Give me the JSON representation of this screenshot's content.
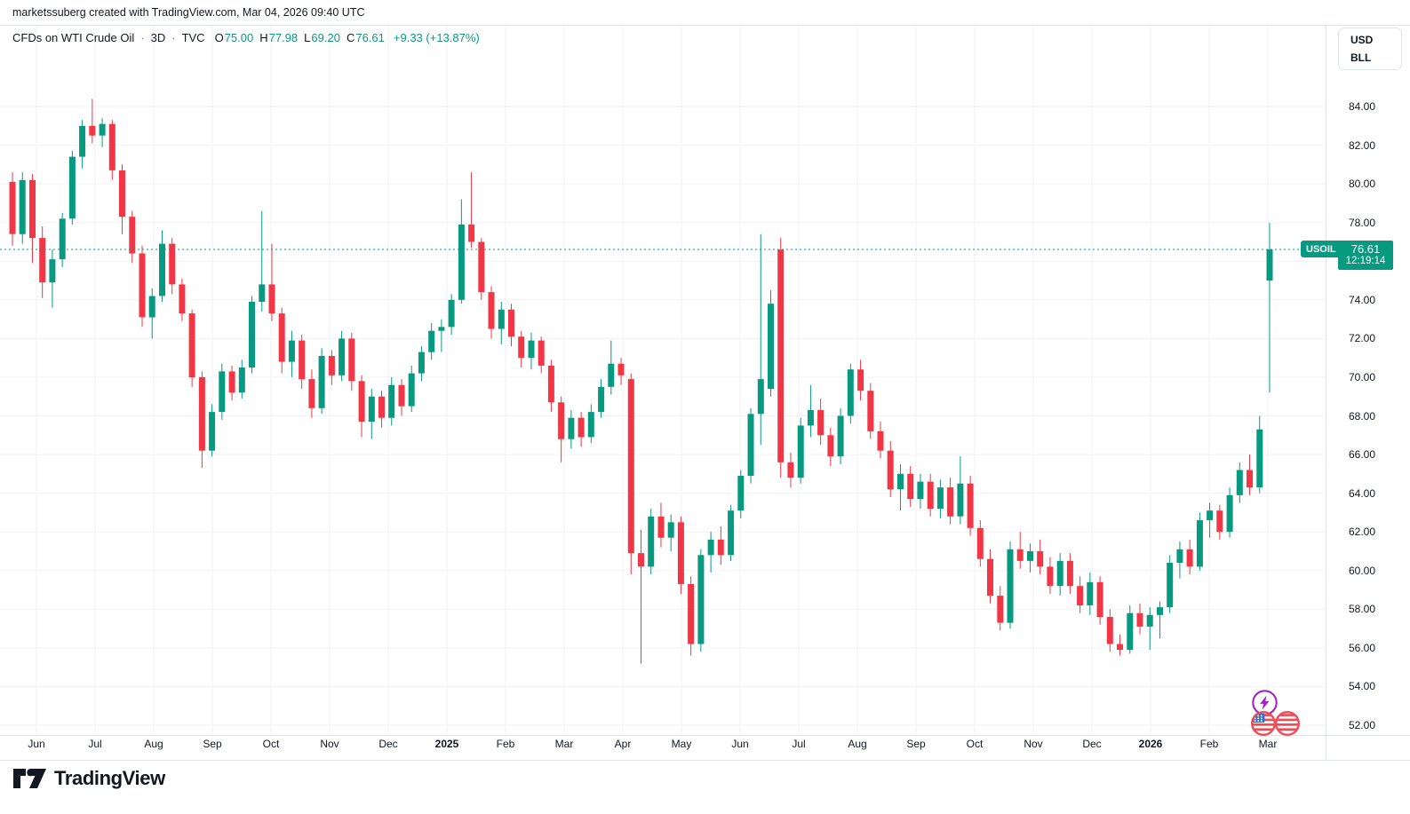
{
  "attribution": "marketssuberg created with TradingView.com, Mar 04, 2026 09:40 UTC",
  "legend": {
    "title": "CFDs on WTI Crude Oil",
    "separator": "·",
    "interval": "3D",
    "exchange": "TVC",
    "o_label": "O",
    "o_value": "75.00",
    "h_label": "H",
    "h_value": "77.98",
    "l_label": "L",
    "l_value": "69.20",
    "c_label": "C",
    "c_value": "76.61",
    "change": "+9.33 (+13.87%)"
  },
  "unit_box": {
    "currency": "USD",
    "unit": "BLL"
  },
  "price_label": {
    "symbol": "USOIL",
    "price": "76.61",
    "countdown": "12:19:14"
  },
  "footer": {
    "logo_text": "TradingView"
  },
  "icons": [
    "lightning-icon",
    "us-flag-icon",
    "tradingview-logo-mark"
  ],
  "colors": {
    "up": "#089981",
    "down": "#F23645",
    "accent": "#089981",
    "grid": "#f0f2f6",
    "border": "#e0e3eb",
    "text": "#131722",
    "muted": "#787b86",
    "purple": "#A224C4",
    "flag_red": "#EF4B55",
    "flag_blue": "#3A6CC6"
  },
  "chart_data": {
    "type": "candlestick",
    "title": "CFDs on WTI Crude Oil",
    "symbol": "USOIL",
    "exchange": "TVC",
    "interval": "3D",
    "last_bar": {
      "open": 75.0,
      "high": 77.98,
      "low": 69.2,
      "close": 76.61,
      "change": 9.33,
      "change_pct": 13.87
    },
    "price_line": {
      "value": 76.61,
      "style": "dotted"
    },
    "y_axis": {
      "min": 52,
      "max": 84,
      "tick_step": 2,
      "ticks": [
        84,
        82,
        80,
        78,
        76,
        74,
        72,
        70,
        68,
        66,
        64,
        62,
        60,
        58,
        56,
        54,
        52
      ]
    },
    "x_axis": {
      "labels": [
        {
          "label": "Jun",
          "bold": false
        },
        {
          "label": "Jul",
          "bold": false
        },
        {
          "label": "Aug",
          "bold": false
        },
        {
          "label": "Sep",
          "bold": false
        },
        {
          "label": "Oct",
          "bold": false
        },
        {
          "label": "Nov",
          "bold": false
        },
        {
          "label": "Dec",
          "bold": false
        },
        {
          "label": "2025",
          "bold": true
        },
        {
          "label": "Feb",
          "bold": false
        },
        {
          "label": "Mar",
          "bold": false
        },
        {
          "label": "Apr",
          "bold": false
        },
        {
          "label": "May",
          "bold": false
        },
        {
          "label": "Jun",
          "bold": false
        },
        {
          "label": "Jul",
          "bold": false
        },
        {
          "label": "Aug",
          "bold": false
        },
        {
          "label": "Sep",
          "bold": false
        },
        {
          "label": "Oct",
          "bold": false
        },
        {
          "label": "Nov",
          "bold": false
        },
        {
          "label": "Dec",
          "bold": false
        },
        {
          "label": "2026",
          "bold": true
        },
        {
          "label": "Feb",
          "bold": false
        },
        {
          "label": "Mar",
          "bold": false
        }
      ]
    },
    "candles_format": "[open, high, low, close] — values estimated from chart gridlines",
    "candles": [
      [
        80.1,
        80.6,
        76.8,
        77.4
      ],
      [
        77.4,
        80.6,
        76.9,
        80.2
      ],
      [
        80.2,
        80.5,
        75.9,
        77.2
      ],
      [
        77.2,
        77.8,
        74.1,
        74.9
      ],
      [
        74.9,
        76.6,
        73.6,
        76.1
      ],
      [
        76.1,
        78.5,
        75.7,
        78.2
      ],
      [
        78.2,
        81.7,
        77.9,
        81.4
      ],
      [
        81.4,
        83.3,
        80.8,
        83.0
      ],
      [
        83.0,
        84.4,
        82.1,
        82.5
      ],
      [
        82.5,
        83.4,
        81.9,
        83.1
      ],
      [
        83.1,
        83.3,
        80.2,
        80.7
      ],
      [
        80.7,
        81.0,
        77.4,
        78.3
      ],
      [
        78.3,
        78.6,
        75.9,
        76.4
      ],
      [
        76.4,
        76.8,
        72.6,
        73.1
      ],
      [
        73.1,
        74.6,
        72.0,
        74.2
      ],
      [
        74.2,
        77.6,
        73.9,
        76.9
      ],
      [
        76.9,
        77.2,
        74.3,
        74.8
      ],
      [
        74.8,
        75.1,
        72.9,
        73.3
      ],
      [
        73.3,
        73.5,
        69.5,
        70.0
      ],
      [
        70.0,
        70.3,
        65.3,
        66.2
      ],
      [
        66.2,
        68.6,
        65.9,
        68.2
      ],
      [
        68.2,
        70.7,
        67.8,
        70.3
      ],
      [
        70.3,
        70.6,
        68.8,
        69.2
      ],
      [
        69.2,
        70.9,
        68.9,
        70.5
      ],
      [
        70.5,
        74.2,
        70.2,
        73.9
      ],
      [
        73.9,
        78.6,
        73.4,
        74.8
      ],
      [
        74.8,
        76.9,
        72.9,
        73.3
      ],
      [
        73.3,
        73.6,
        70.2,
        70.8
      ],
      [
        70.8,
        72.4,
        70.0,
        71.9
      ],
      [
        71.9,
        72.2,
        69.4,
        69.9
      ],
      [
        69.9,
        70.4,
        67.9,
        68.4
      ],
      [
        68.4,
        71.5,
        68.1,
        71.1
      ],
      [
        71.1,
        71.4,
        69.6,
        70.1
      ],
      [
        70.1,
        72.4,
        69.8,
        72.0
      ],
      [
        72.0,
        72.3,
        69.3,
        69.8
      ],
      [
        69.8,
        70.1,
        66.9,
        67.7
      ],
      [
        67.7,
        69.4,
        66.8,
        69.0
      ],
      [
        69.0,
        69.3,
        67.4,
        67.9
      ],
      [
        67.9,
        70.0,
        67.5,
        69.6
      ],
      [
        69.6,
        69.9,
        68.0,
        68.5
      ],
      [
        68.5,
        70.6,
        68.2,
        70.2
      ],
      [
        70.2,
        71.6,
        69.8,
        71.3
      ],
      [
        71.3,
        72.8,
        70.9,
        72.4
      ],
      [
        72.4,
        73.0,
        71.3,
        72.6
      ],
      [
        72.6,
        74.3,
        72.2,
        74.0
      ],
      [
        74.0,
        79.2,
        73.8,
        77.9
      ],
      [
        77.9,
        80.6,
        76.7,
        77.0
      ],
      [
        77.0,
        77.2,
        74.0,
        74.4
      ],
      [
        74.4,
        74.7,
        72.0,
        72.5
      ],
      [
        72.5,
        73.9,
        71.7,
        73.5
      ],
      [
        73.5,
        73.8,
        71.6,
        72.1
      ],
      [
        72.1,
        72.4,
        70.5,
        71.0
      ],
      [
        71.0,
        72.3,
        70.4,
        71.9
      ],
      [
        71.9,
        72.1,
        70.2,
        70.6
      ],
      [
        70.6,
        70.9,
        68.2,
        68.7
      ],
      [
        68.7,
        69.0,
        65.6,
        66.8
      ],
      [
        66.8,
        68.3,
        66.3,
        67.9
      ],
      [
        67.9,
        68.2,
        66.4,
        66.9
      ],
      [
        66.9,
        68.6,
        66.6,
        68.2
      ],
      [
        68.2,
        69.9,
        67.9,
        69.5
      ],
      [
        69.5,
        71.9,
        69.1,
        70.7
      ],
      [
        70.7,
        71.0,
        69.6,
        70.1
      ],
      [
        69.9,
        70.2,
        59.8,
        60.9
      ],
      [
        60.9,
        62.1,
        55.2,
        60.2
      ],
      [
        60.2,
        63.2,
        59.8,
        62.8
      ],
      [
        62.8,
        63.5,
        61.2,
        61.7
      ],
      [
        61.7,
        62.9,
        61.0,
        62.5
      ],
      [
        62.5,
        62.8,
        58.8,
        59.3
      ],
      [
        59.3,
        59.7,
        55.6,
        56.2
      ],
      [
        56.2,
        61.1,
        55.8,
        60.8
      ],
      [
        60.8,
        62.0,
        59.9,
        61.6
      ],
      [
        61.6,
        62.3,
        60.3,
        60.8
      ],
      [
        60.8,
        63.4,
        60.5,
        63.1
      ],
      [
        63.1,
        65.2,
        62.7,
        64.9
      ],
      [
        64.9,
        68.4,
        64.5,
        68.1
      ],
      [
        68.1,
        77.4,
        66.5,
        69.9
      ],
      [
        69.4,
        74.5,
        69.0,
        73.8
      ],
      [
        76.6,
        77.2,
        64.8,
        65.6
      ],
      [
        65.6,
        66.1,
        64.3,
        64.8
      ],
      [
        64.8,
        67.9,
        64.5,
        67.5
      ],
      [
        67.5,
        69.6,
        66.9,
        68.3
      ],
      [
        68.3,
        68.9,
        66.5,
        67.0
      ],
      [
        67.0,
        67.4,
        65.4,
        65.9
      ],
      [
        65.9,
        68.4,
        65.5,
        68.0
      ],
      [
        68.0,
        70.7,
        67.6,
        70.4
      ],
      [
        70.4,
        70.9,
        68.8,
        69.3
      ],
      [
        69.3,
        69.7,
        66.8,
        67.2
      ],
      [
        67.2,
        67.7,
        65.8,
        66.2
      ],
      [
        66.2,
        66.7,
        63.8,
        64.2
      ],
      [
        64.2,
        65.5,
        63.1,
        65.0
      ],
      [
        65.0,
        65.4,
        63.3,
        63.7
      ],
      [
        63.7,
        65.0,
        63.2,
        64.6
      ],
      [
        64.6,
        65.0,
        62.8,
        63.2
      ],
      [
        63.2,
        64.7,
        62.7,
        64.3
      ],
      [
        64.3,
        64.8,
        62.4,
        62.8
      ],
      [
        62.8,
        65.9,
        62.4,
        64.5
      ],
      [
        64.5,
        64.9,
        61.8,
        62.2
      ],
      [
        62.2,
        62.6,
        60.2,
        60.6
      ],
      [
        60.6,
        61.1,
        58.3,
        58.7
      ],
      [
        58.7,
        59.2,
        56.9,
        57.3
      ],
      [
        57.3,
        61.5,
        57.0,
        61.1
      ],
      [
        61.1,
        62.0,
        60.1,
        60.5
      ],
      [
        60.5,
        61.4,
        59.9,
        61.0
      ],
      [
        61.0,
        61.6,
        59.8,
        60.2
      ],
      [
        60.2,
        60.7,
        58.8,
        59.2
      ],
      [
        59.2,
        60.9,
        58.7,
        60.5
      ],
      [
        60.5,
        60.9,
        58.8,
        59.2
      ],
      [
        59.2,
        59.7,
        57.8,
        58.2
      ],
      [
        58.2,
        59.9,
        57.7,
        59.4
      ],
      [
        59.4,
        59.7,
        57.2,
        57.6
      ],
      [
        57.6,
        58.0,
        55.8,
        56.2
      ],
      [
        56.2,
        56.7,
        55.6,
        55.9
      ],
      [
        55.9,
        58.2,
        55.7,
        57.8
      ],
      [
        57.8,
        58.3,
        56.7,
        57.1
      ],
      [
        57.1,
        58.1,
        55.9,
        57.7
      ],
      [
        57.7,
        58.4,
        56.5,
        58.1
      ],
      [
        58.1,
        60.8,
        57.8,
        60.4
      ],
      [
        60.4,
        61.5,
        59.6,
        61.1
      ],
      [
        61.1,
        61.6,
        59.8,
        60.2
      ],
      [
        60.2,
        63.0,
        60.0,
        62.6
      ],
      [
        62.6,
        63.5,
        61.7,
        63.1
      ],
      [
        63.1,
        63.4,
        61.6,
        62.0
      ],
      [
        62.0,
        64.3,
        61.7,
        63.9
      ],
      [
        63.9,
        65.6,
        63.5,
        65.2
      ],
      [
        65.2,
        66.0,
        63.9,
        64.3
      ],
      [
        64.3,
        68.0,
        64.0,
        67.3
      ],
      [
        75.0,
        77.98,
        69.2,
        76.61
      ]
    ]
  }
}
